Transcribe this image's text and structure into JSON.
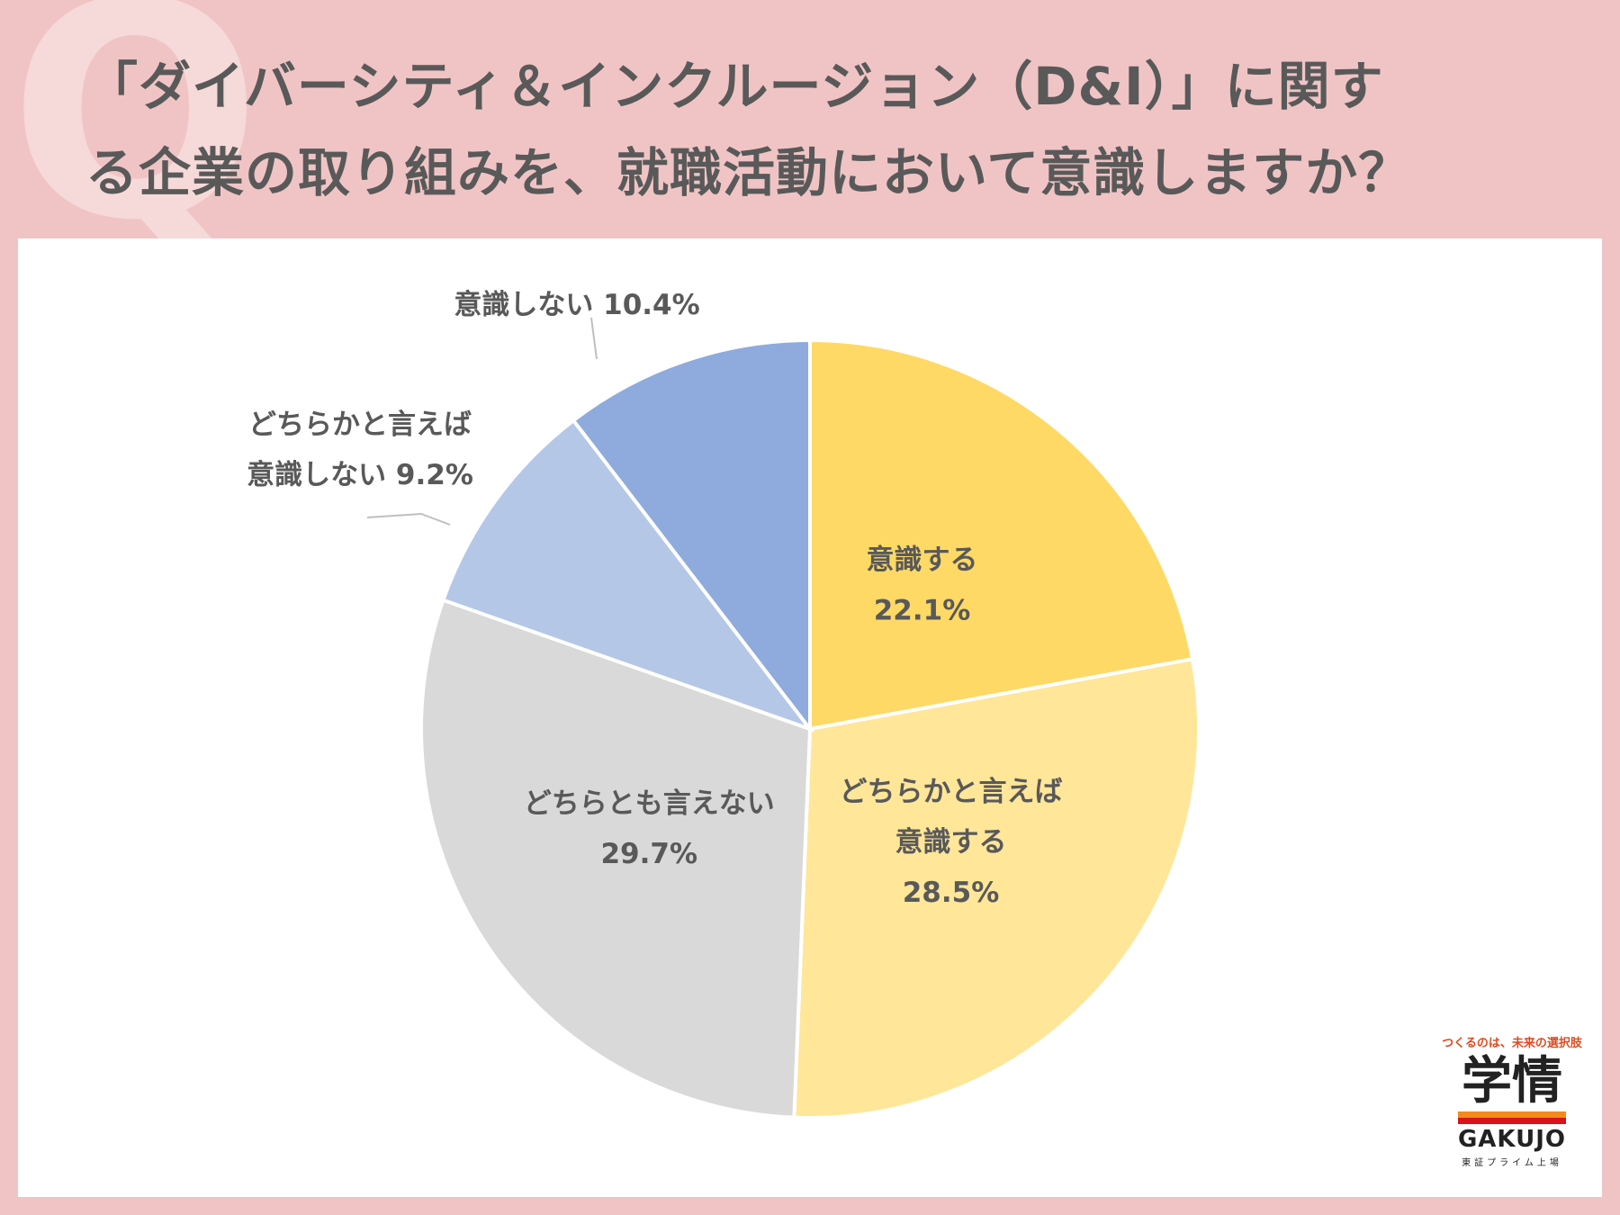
{
  "header": {
    "q_mark": "Q",
    "title_line1": "「ダイバーシティ＆インクルージョン（D&I）」に関す",
    "title_line2": "る企業の取り組みを、就職活動において意識しますか？"
  },
  "chart_data": {
    "type": "pie",
    "start": "12 o'clock",
    "direction": "clockwise",
    "slices": [
      {
        "label_lines": [
          "意識する"
        ],
        "value": 22.1,
        "value_text": "22.1%",
        "color": "#ffd966",
        "label_position": "inside"
      },
      {
        "label_lines": [
          "どちらかと言えば",
          "意識する"
        ],
        "value": 28.5,
        "value_text": "28.5%",
        "color": "#ffe699",
        "label_position": "inside"
      },
      {
        "label_lines": [
          "どちらとも言えない"
        ],
        "value": 29.7,
        "value_text": "29.7%",
        "color": "#d9d9d9",
        "label_position": "inside"
      },
      {
        "label_lines": [
          "どちらかと言えば",
          "意識しない"
        ],
        "value": 9.2,
        "value_text": "9.2%",
        "color": "#b4c7e7",
        "label_position": "outside"
      },
      {
        "label_lines": [
          "意識しない"
        ],
        "value": 10.4,
        "value_text": "10.4%",
        "color": "#8faadc",
        "label_position": "outside"
      }
    ]
  },
  "logo": {
    "tagline": "つくるのは、未来の選択肢",
    "kanji": "学情",
    "brand": "GAKUJO",
    "sub": "東証プライム上場"
  }
}
